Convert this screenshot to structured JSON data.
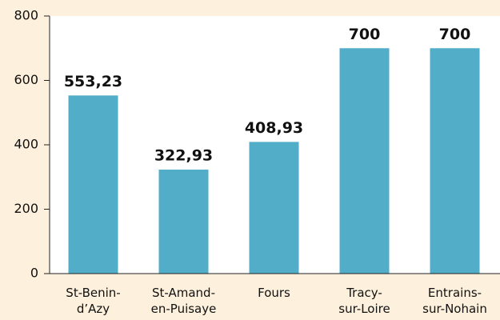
{
  "chart_data": {
    "type": "bar",
    "categories": [
      [
        "St-Benin-",
        "d’Azy"
      ],
      [
        "St-Amand-",
        "en-Puisaye"
      ],
      [
        "Fours"
      ],
      [
        "Tracy-",
        "sur-Loire"
      ],
      [
        "Entrains-",
        "sur-Nohain"
      ]
    ],
    "values": [
      553.23,
      322.93,
      408.93,
      700,
      700
    ],
    "value_labels": [
      "553,23",
      "322,93",
      "408,93",
      "700",
      "700"
    ],
    "color": "#52aec8",
    "ylim": [
      0,
      800
    ],
    "yticks": [
      0,
      200,
      400,
      600,
      800
    ],
    "grid": false
  }
}
